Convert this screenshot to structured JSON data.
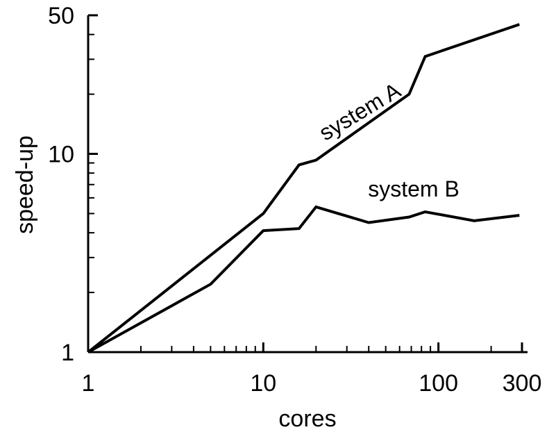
{
  "chart_data": {
    "type": "line",
    "title": "",
    "xlabel": "cores",
    "ylabel": "speed-up",
    "xscale": "log",
    "yscale": "log",
    "xlim": [
      1,
      300
    ],
    "ylim": [
      1,
      50
    ],
    "grid": false,
    "legend": "inline labels",
    "line_color": "#000000",
    "x_ticks": [
      {
        "value": 1,
        "label": "1"
      },
      {
        "value": 10,
        "label": "10"
      },
      {
        "value": 100,
        "label": "100"
      },
      {
        "value": 300,
        "label": "300"
      }
    ],
    "y_ticks": [
      {
        "value": 1,
        "label": "1"
      },
      {
        "value": 10,
        "label": "10"
      },
      {
        "value": 50,
        "label": "50"
      }
    ],
    "series": [
      {
        "name": "system A",
        "x": [
          1,
          10,
          16,
          20,
          68,
          84,
          290
        ],
        "y": [
          1,
          5.0,
          8.8,
          9.3,
          20,
          31,
          45
        ]
      },
      {
        "name": "system B",
        "x": [
          1,
          5,
          10,
          16,
          20,
          40,
          68,
          84,
          160,
          290
        ],
        "y": [
          1,
          2.2,
          4.1,
          4.2,
          5.4,
          4.5,
          4.8,
          5.1,
          4.6,
          4.9
        ]
      }
    ]
  }
}
